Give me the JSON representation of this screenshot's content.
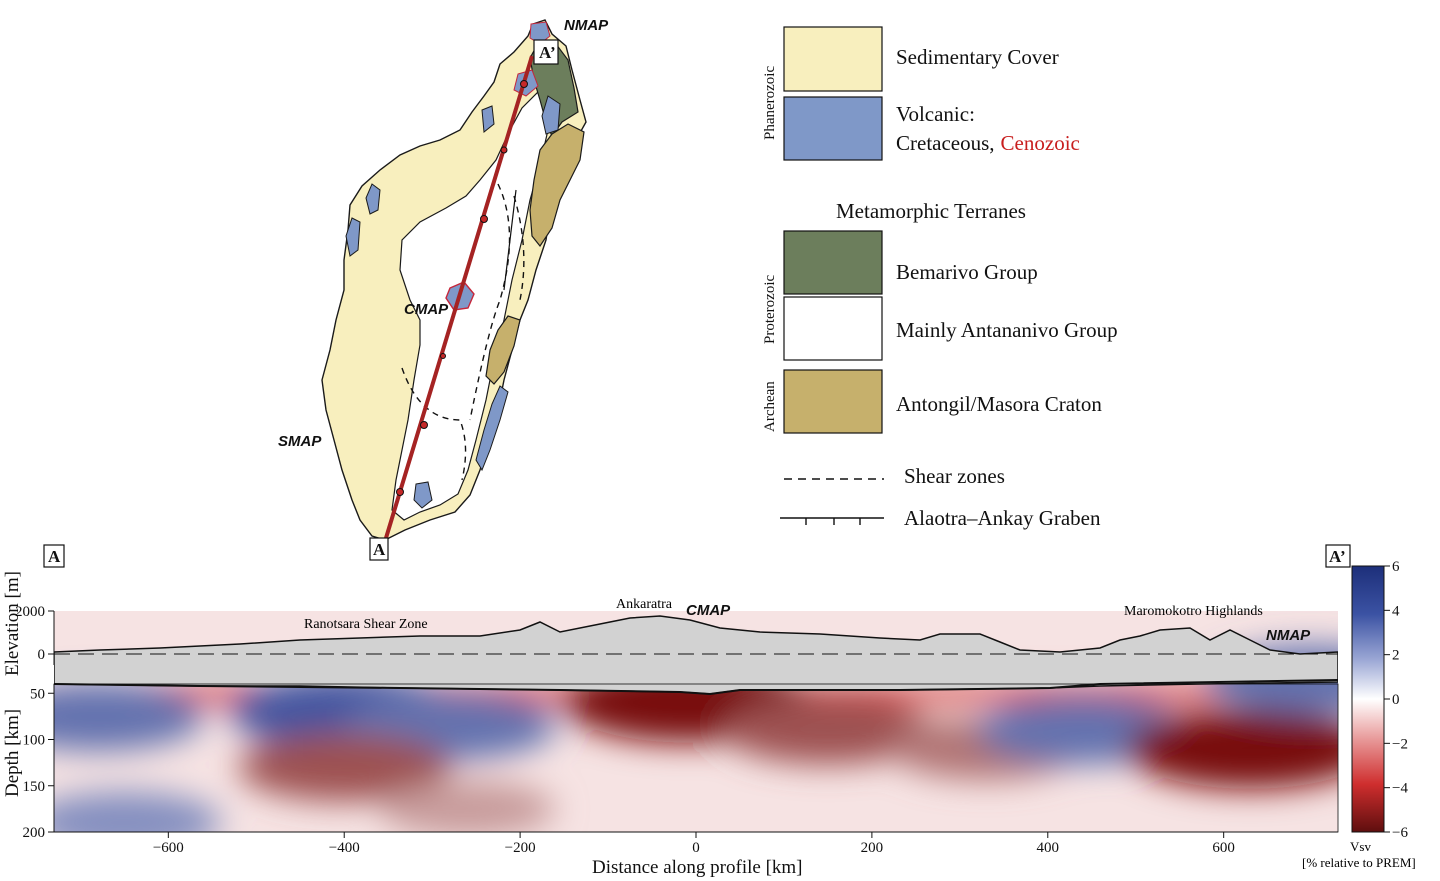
{
  "map": {
    "labels": {
      "nmap": "NMAP",
      "cmap": "CMAP",
      "smap": "SMAP",
      "a": "A",
      "a_prime": "A’"
    }
  },
  "legend": {
    "era_phanerozoic": "Phanerozoic",
    "era_proterozoic": "Proterozoic",
    "era_archean": "Archean",
    "metamorphic_heading": "Metamorphic Terranes",
    "units": [
      {
        "label": "Sedimentary Cover",
        "color": "#f8efbe"
      },
      {
        "label_line1": "Volcanic:",
        "label_line2a": "Cretaceous,",
        "label_line2b": "Cenozoic",
        "color": "#7f98c8",
        "accent": "#d11f1f"
      },
      {
        "label": "Bemarivo Group",
        "color": "#6c7e5c"
      },
      {
        "label": "Mainly Antananivo Group",
        "color": "#ffffff"
      },
      {
        "label": "Antongil/Masora Craton",
        "color": "#c6b06c"
      }
    ],
    "shear_zones": "Shear zones",
    "graben": "Alaotra–Ankay Graben"
  },
  "profile": {
    "box_left": "A",
    "box_right": "A’",
    "elevation_label": "Elevation [m]",
    "depth_label": "Depth [km]",
    "x_label": "Distance along profile [km]",
    "annotations": {
      "ranotsara": "Ranotsara Shear Zone",
      "ankaratra": "Ankaratra",
      "cmap": "CMAP",
      "maromokotro": "Maromokotro Highlands",
      "nmap": "NMAP"
    },
    "elev_ticks": [
      "2000",
      "0"
    ],
    "depth_ticks": [
      "50",
      "100",
      "150",
      "200"
    ],
    "x_ticks": [
      "−600",
      "−400",
      "−200",
      "0",
      "200",
      "400",
      "600"
    ],
    "colorbar": {
      "ticks": [
        "6",
        "4",
        "2",
        "0",
        "−2",
        "−4",
        "−6"
      ],
      "title_line1": "Vsv",
      "title_line2": "[% relative to PREM]",
      "range": [
        -6,
        6
      ]
    }
  },
  "chart_data": {
    "type": "heatmap",
    "xlim": [
      -730,
      730
    ],
    "ylim": [
      200,
      30
    ],
    "xlabel": "Distance along profile [km]",
    "ylabel": "Depth [km]",
    "colorbar_range": [
      -6,
      6
    ],
    "anomalies": [
      {
        "x": -680,
        "depth": 75,
        "value": 4
      },
      {
        "x": -400,
        "depth": 70,
        "value": 5
      },
      {
        "x": -280,
        "depth": 85,
        "value": 4
      },
      {
        "x": -400,
        "depth": 130,
        "value": -4
      },
      {
        "x": -260,
        "depth": 175,
        "value": -2
      },
      {
        "x": -10,
        "depth": 60,
        "value": -6
      },
      {
        "x": 150,
        "depth": 90,
        "value": -4
      },
      {
        "x": 330,
        "depth": 110,
        "value": -3
      },
      {
        "x": 440,
        "depth": 90,
        "value": 4
      },
      {
        "x": 630,
        "depth": 110,
        "value": -6
      },
      {
        "x": -650,
        "depth": 190,
        "value": 3
      },
      {
        "x": 700,
        "depth": 35,
        "value": 4
      }
    ]
  }
}
